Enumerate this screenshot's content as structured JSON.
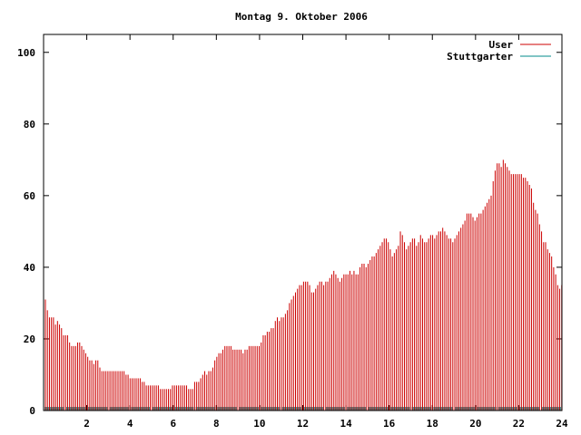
{
  "chart_data": {
    "type": "bar",
    "title": "Montag 9. Oktober 2006",
    "xlabel": "",
    "ylabel": "",
    "xlim": [
      0,
      24
    ],
    "ylim": [
      0,
      105
    ],
    "x_ticks": [
      "2",
      "4",
      "6",
      "8",
      "10",
      "12",
      "14",
      "16",
      "18",
      "20",
      "22",
      "24"
    ],
    "y_ticks": [
      "0",
      "20",
      "40",
      "60",
      "80",
      "100"
    ],
    "legend": "top-right",
    "grid": false,
    "series": [
      {
        "name": "User",
        "color": "#cc0000",
        "step_hours": 0.0833,
        "values": [
          31,
          28,
          26,
          26,
          26,
          24,
          25,
          24,
          23,
          21,
          21,
          21,
          19,
          18,
          18,
          18,
          19,
          19,
          18,
          17,
          16,
          15,
          14,
          14,
          13,
          14,
          14,
          12,
          11,
          11,
          11,
          11,
          11,
          11,
          11,
          11,
          11,
          11,
          11,
          11,
          10,
          10,
          9,
          9,
          9,
          9,
          9,
          9,
          8,
          8,
          7,
          7,
          7,
          7,
          7,
          7,
          7,
          6,
          6,
          6,
          6,
          6,
          6,
          7,
          7,
          7,
          7,
          7,
          7,
          7,
          7,
          6,
          6,
          6,
          8,
          8,
          8,
          9,
          10,
          11,
          10,
          11,
          11,
          12,
          14,
          15,
          16,
          16,
          17,
          18,
          18,
          18,
          18,
          17,
          17,
          17,
          17,
          17,
          16,
          17,
          17,
          18,
          18,
          18,
          18,
          18,
          18,
          19,
          21,
          21,
          22,
          22,
          23,
          23,
          25,
          26,
          25,
          26,
          26,
          27,
          28,
          30,
          31,
          32,
          33,
          34,
          35,
          35,
          36,
          36,
          36,
          35,
          33,
          33,
          34,
          35,
          36,
          36,
          35,
          36,
          36,
          37,
          38,
          39,
          38,
          37,
          36,
          37,
          38,
          38,
          38,
          39,
          38,
          39,
          38,
          38,
          40,
          41,
          41,
          40,
          41,
          42,
          43,
          43,
          44,
          45,
          46,
          47,
          48,
          48,
          47,
          45,
          43,
          44,
          45,
          46,
          50,
          49,
          47,
          45,
          46,
          47,
          48,
          48,
          46,
          47,
          49,
          48,
          47,
          47,
          48,
          49,
          49,
          48,
          49,
          50,
          50,
          51,
          50,
          49,
          48,
          48,
          47,
          48,
          49,
          50,
          51,
          52,
          53,
          55,
          55,
          55,
          54,
          53,
          54,
          55,
          55,
          56,
          57,
          58,
          59,
          60,
          64,
          67,
          69,
          69,
          68,
          70,
          69,
          68,
          67,
          66,
          66,
          66,
          66,
          66,
          66,
          65,
          65,
          64,
          63,
          62,
          58,
          56,
          55,
          52,
          50,
          47,
          47,
          45,
          44,
          43,
          40,
          38,
          35,
          34,
          35
        ],
        "highlight_values": [
          13,
          6,
          36,
          66
        ]
      },
      {
        "name": "Stuttgarter",
        "color": "#008b8b",
        "values": [
          1,
          1,
          1,
          1,
          1,
          1,
          1,
          1,
          1,
          1,
          1,
          1,
          1,
          1,
          1,
          1,
          1,
          1,
          1,
          1,
          1,
          1,
          1,
          1
        ]
      }
    ]
  }
}
